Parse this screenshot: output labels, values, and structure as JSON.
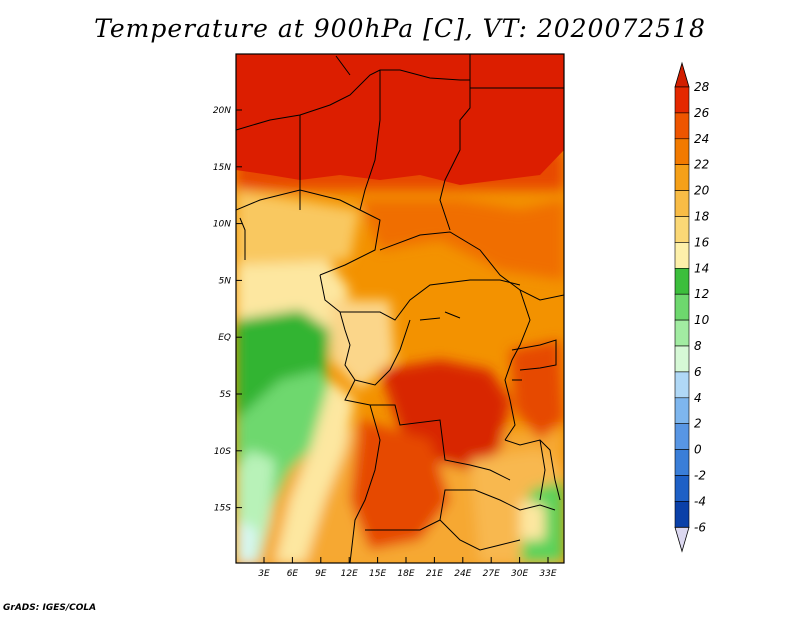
{
  "title": "Temperature at 900hPa [C], VT: 2020072518",
  "credit": "GrADS: IGES/COLA",
  "map": {
    "lon_range": [
      0,
      35
    ],
    "lat_range": [
      -20,
      25
    ],
    "lon_ticks": [
      "3E",
      "6E",
      "9E",
      "12E",
      "15E",
      "18E",
      "21E",
      "24E",
      "27E",
      "30E",
      "33E"
    ],
    "lat_ticks": [
      "20N",
      "15N",
      "10N",
      "5N",
      "EQ",
      "5S",
      "10S",
      "15S"
    ]
  },
  "colorbar": {
    "labels": [
      "28",
      "26",
      "24",
      "22",
      "20",
      "18",
      "16",
      "14",
      "12",
      "10",
      "8",
      "6",
      "4",
      "2",
      "0",
      "-2",
      "-4",
      "-6"
    ],
    "colors": [
      "#6e0000",
      "#d21e00",
      "#e84a00",
      "#f06e00",
      "#f69a00",
      "#f9b640",
      "#fbd26e",
      "#fdeba0",
      "#fefcc8",
      "#32b432",
      "#5ad25a",
      "#8ee68e",
      "#b8f2b8",
      "#e0fae0",
      "#b4dcf8",
      "#84bcf0",
      "#5a9ce6",
      "#3c82dc",
      "#1e64c8",
      "#0a46aa",
      "#002896",
      "#000a64"
    ]
  }
}
